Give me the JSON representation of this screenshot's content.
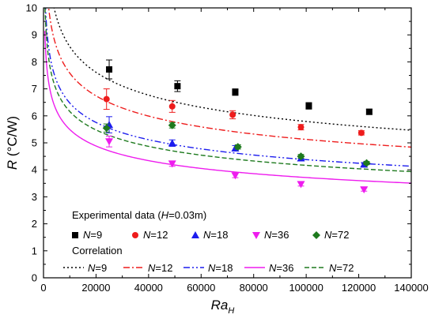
{
  "chart_data": {
    "type": "scatter",
    "xlabel": "Ra",
    "xlabel_sub": "H",
    "ylabel": "R",
    "ylabel_unit": "(°C/W)",
    "xlim": [
      0,
      140000
    ],
    "ylim": [
      0,
      10
    ],
    "xticks": [
      0,
      20000,
      40000,
      60000,
      80000,
      100000,
      120000,
      140000
    ],
    "yticks": [
      0,
      1,
      2,
      3,
      4,
      5,
      6,
      7,
      8,
      9,
      10
    ],
    "grid": false,
    "legend_placement": "bottom-left",
    "legend_header_experimental": "Experimental data (",
    "legend_header_experimental_var": "H",
    "legend_header_experimental_tail": "=0.03m)",
    "legend_header_correlation": "Correlation",
    "legend_prefix": "N",
    "series": [
      {
        "name": "N=9",
        "label_value": "=9",
        "color": "#000000",
        "marker": "square",
        "points": [
          [
            25000,
            7.72,
            0.35
          ],
          [
            51000,
            7.1,
            0.2
          ],
          [
            73000,
            6.88,
            0.12
          ],
          [
            101000,
            6.37,
            0.12
          ],
          [
            124000,
            6.15,
            0.1
          ]
        ],
        "fit_coefficient": 41.0
      },
      {
        "name": "N=12",
        "label_value": "=12",
        "color": "#ee1c1c",
        "marker": "circle",
        "points": [
          [
            24000,
            6.62,
            0.38
          ],
          [
            49000,
            6.35,
            0.22
          ],
          [
            72000,
            6.04,
            0.15
          ],
          [
            98000,
            5.58,
            0.1
          ],
          [
            121000,
            5.37,
            0.08
          ]
        ],
        "fit_coefficient": 36.3
      },
      {
        "name": "N=18",
        "label_value": "=18",
        "color": "#1c1cee",
        "marker": "triangle-up",
        "points": [
          [
            25000,
            5.67,
            0.3
          ],
          [
            49000,
            4.99,
            0.12
          ],
          [
            73000,
            4.8,
            0.1
          ],
          [
            98000,
            4.43,
            0.08
          ],
          [
            122000,
            4.2,
            0.07
          ]
        ],
        "fit_coefficient": 31.0
      },
      {
        "name": "N=36",
        "label_value": "=36",
        "color": "#ee1cee",
        "marker": "triangle-down",
        "points": [
          [
            25000,
            5.05,
            0.2
          ],
          [
            49000,
            4.23,
            0.1
          ],
          [
            73000,
            3.79,
            0.08
          ],
          [
            98000,
            3.47,
            0.07
          ],
          [
            122000,
            3.27,
            0.06
          ]
        ],
        "fit_coefficient": 26.3
      },
      {
        "name": "N=72",
        "label_value": "=72",
        "color": "#1e7a1e",
        "marker": "diamond",
        "points": [
          [
            24000,
            5.55,
            0.15
          ],
          [
            49000,
            5.65,
            0.1
          ],
          [
            74000,
            4.85,
            0.08
          ],
          [
            98000,
            4.5,
            0.07
          ],
          [
            123000,
            4.25,
            0.06
          ]
        ],
        "fit_coefficient": 29.5
      }
    ],
    "correlation_styles": {
      "N=9": "dotted",
      "N=12": "dash-dot",
      "N=18": "dash-dot-dot",
      "N=36": "solid",
      "N=72": "dashed"
    },
    "fit_exponent": -0.17
  }
}
